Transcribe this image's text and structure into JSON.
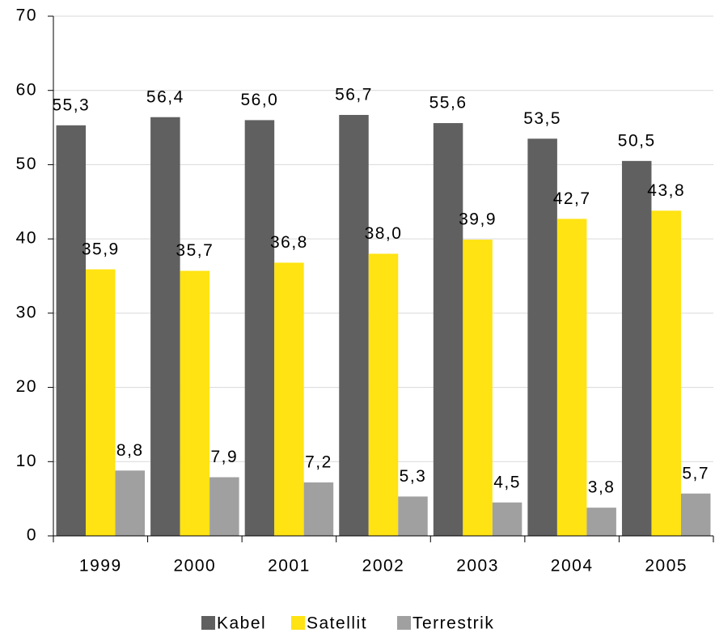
{
  "chart_data": {
    "type": "bar",
    "categories": [
      "1999",
      "2000",
      "2001",
      "2002",
      "2003",
      "2004",
      "2005"
    ],
    "series": [
      {
        "name": "Kabel",
        "color": "#606060",
        "values": [
          55.3,
          56.4,
          56.0,
          56.7,
          55.6,
          53.5,
          50.5
        ],
        "value_labels": [
          "55,3",
          "56,4",
          "56,0",
          "56,7",
          "55,6",
          "53,5",
          "50,5"
        ]
      },
      {
        "name": "Satellit",
        "color": "#ffe312",
        "values": [
          35.9,
          35.7,
          36.8,
          38.0,
          39.9,
          42.7,
          43.8
        ],
        "value_labels": [
          "35,9",
          "35,7",
          "36,8",
          "38,0",
          "39,9",
          "42,7",
          "43,8"
        ]
      },
      {
        "name": "Terrestrik",
        "color": "#a0a0a0",
        "values": [
          8.8,
          7.9,
          7.2,
          5.3,
          4.5,
          3.8,
          5.7
        ],
        "value_labels": [
          "8,8",
          "7,9",
          "7,2",
          "5,3",
          "4,5",
          "3,8",
          "5,7"
        ]
      }
    ],
    "ylim": [
      0,
      70
    ],
    "yticks": [
      0,
      10,
      20,
      30,
      40,
      50,
      60,
      70
    ],
    "grid": true,
    "legend": "bottom"
  }
}
